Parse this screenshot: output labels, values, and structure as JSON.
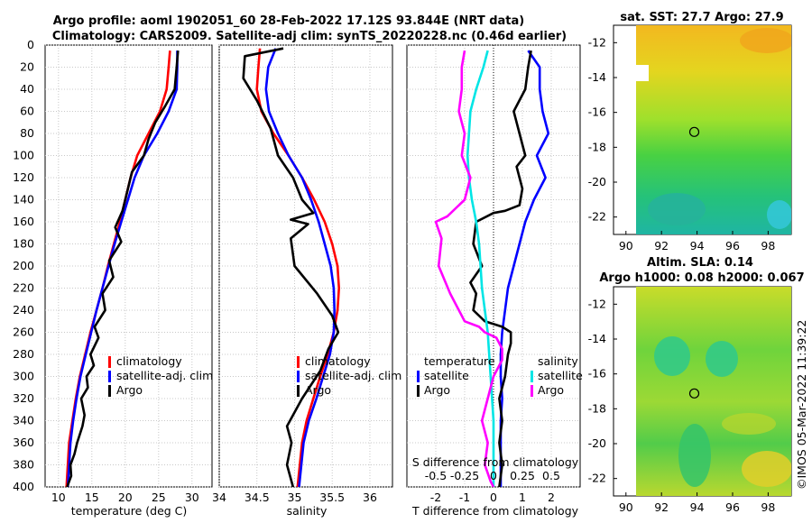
{
  "title": {
    "line1": "Argo profile: aoml 1902051_60 28-Feb-2022 17.12S 93.844E (NRT data)",
    "line2": "Climatology: CARS2009. Satellite-adj clim: synTS_20220228.nc (0.46d earlier)"
  },
  "copyright": "©IMOS 05-Mar-2022 11:39:22",
  "colors": {
    "climatology": "#ff0000",
    "satellite": "#0000ff",
    "argo": "#000000",
    "s_satellite": "#00e5e5",
    "s_argo": "#ff00ff"
  },
  "chart_data": [
    {
      "type": "line",
      "id": "temperature",
      "xlabel": "temperature (deg C)",
      "ylabel": "",
      "xlim": [
        8,
        33
      ],
      "ylim": [
        0,
        400
      ],
      "y_reversed": true,
      "xticks": [
        10,
        15,
        20,
        25,
        30
      ],
      "yticks": [
        0,
        20,
        40,
        60,
        80,
        100,
        120,
        140,
        160,
        180,
        200,
        220,
        240,
        260,
        280,
        300,
        320,
        340,
        360,
        380,
        400
      ],
      "grid": true,
      "legend": [
        "climatology",
        "satellite-adj. clim",
        "Argo"
      ],
      "series": [
        {
          "name": "climatology",
          "x": [
            26.7,
            26.5,
            26.2,
            25.2,
            23.5,
            21.8,
            20.8,
            20.0,
            19.2,
            18.3,
            17.4,
            16.6,
            15.7,
            14.8,
            14.0,
            13.2,
            12.6,
            12.1,
            11.6,
            11.2
          ],
          "y": [
            5,
            20,
            40,
            60,
            80,
            100,
            120,
            140,
            160,
            180,
            200,
            220,
            240,
            260,
            280,
            300,
            320,
            340,
            360,
            400
          ]
        },
        {
          "name": "satellite-adj. clim",
          "x": [
            27.8,
            27.8,
            27.7,
            26.5,
            24.8,
            22.8,
            21.4,
            20.4,
            19.4,
            18.4,
            17.5,
            16.6,
            15.7,
            14.9,
            14.1,
            13.3,
            12.7,
            12.2,
            11.8,
            11.4
          ],
          "y": [
            5,
            20,
            40,
            60,
            80,
            100,
            120,
            140,
            160,
            180,
            200,
            220,
            240,
            260,
            280,
            300,
            320,
            340,
            360,
            400
          ]
        },
        {
          "name": "Argo",
          "x": [
            27.9,
            27.7,
            27.4,
            26.0,
            24.5,
            23.5,
            22.8,
            21.0,
            20.4,
            19.6,
            18.5,
            19.4,
            17.6,
            18.2,
            16.6,
            17.0,
            15.4,
            16.0,
            14.8,
            15.3,
            14.2,
            14.4,
            13.4,
            13.9,
            13.6,
            12.8,
            12.4,
            11.8,
            11.9,
            11.3
          ],
          "y": [
            5,
            20,
            40,
            55,
            70,
            85,
            100,
            115,
            130,
            150,
            165,
            178,
            195,
            210,
            225,
            240,
            255,
            265,
            280,
            290,
            300,
            310,
            320,
            335,
            345,
            360,
            370,
            380,
            390,
            400
          ]
        }
      ]
    },
    {
      "type": "line",
      "id": "salinity",
      "xlabel": "salinity",
      "ylabel": "",
      "xlim": [
        34,
        36.3
      ],
      "ylim": [
        0,
        400
      ],
      "y_reversed": true,
      "xticks": [
        34,
        34.5,
        35,
        35.5,
        36
      ],
      "grid": true,
      "legend": [
        "climatology",
        "satellite-adj. clim",
        "Argo"
      ],
      "series": [
        {
          "name": "climatology",
          "x": [
            34.54,
            34.52,
            34.5,
            34.56,
            34.72,
            34.92,
            35.1,
            35.26,
            35.4,
            35.5,
            35.57,
            35.59,
            35.57,
            35.52,
            35.44,
            35.34,
            35.25,
            35.16,
            35.1,
            35.04
          ],
          "y": [
            3,
            20,
            40,
            60,
            80,
            100,
            120,
            140,
            160,
            180,
            200,
            220,
            240,
            260,
            280,
            300,
            320,
            340,
            360,
            400
          ]
        },
        {
          "name": "satellite-adj. clim",
          "x": [
            34.75,
            34.65,
            34.62,
            34.66,
            34.78,
            34.92,
            35.1,
            35.22,
            35.32,
            35.4,
            35.48,
            35.52,
            35.53,
            35.52,
            35.47,
            35.38,
            35.29,
            35.19,
            35.12,
            35.06
          ],
          "y": [
            3,
            20,
            40,
            60,
            80,
            100,
            120,
            140,
            160,
            180,
            200,
            220,
            240,
            260,
            280,
            300,
            320,
            340,
            360,
            400
          ]
        },
        {
          "name": "Argo",
          "x": [
            34.85,
            34.34,
            34.32,
            34.5,
            34.68,
            34.78,
            34.98,
            35.1,
            35.25,
            34.95,
            35.18,
            34.95,
            35.0,
            35.3,
            35.5,
            35.58,
            35.45,
            35.34,
            35.1,
            34.9,
            34.96,
            34.9,
            34.98
          ],
          "y": [
            3,
            10,
            30,
            50,
            75,
            100,
            120,
            140,
            152,
            158,
            162,
            175,
            200,
            225,
            245,
            260,
            275,
            295,
            320,
            345,
            360,
            380,
            400
          ]
        }
      ]
    },
    {
      "type": "line",
      "id": "difference",
      "xlabel": "T difference from climatology",
      "x2label": "S difference from climatology",
      "ylabel": "",
      "xlim": [
        -3,
        3
      ],
      "ylim": [
        0,
        400
      ],
      "y_reversed": true,
      "xticks": [
        -2,
        -1,
        0,
        1,
        2
      ],
      "x2ticks": [
        "-0.5",
        "-0.25",
        "0",
        "0.25",
        "0.5"
      ],
      "grid": true,
      "legend_temperature": {
        "header": "temperature",
        "items": [
          "satellite",
          "Argo"
        ]
      },
      "legend_salinity": {
        "header": "salinity",
        "items": [
          "satellite",
          "Argo"
        ]
      },
      "series": [
        {
          "name": "T satellite",
          "x": [
            1.2,
            1.6,
            1.6,
            1.7,
            1.9,
            1.5,
            1.8,
            1.4,
            1.1,
            0.9,
            0.7,
            0.5,
            0.4,
            0.3,
            0.25,
            0.25,
            0.3,
            0.25,
            0.25,
            0.25
          ],
          "y": [
            5,
            20,
            40,
            60,
            80,
            100,
            120,
            140,
            160,
            180,
            200,
            220,
            240,
            260,
            280,
            300,
            320,
            340,
            360,
            400
          ]
        },
        {
          "name": "T Argo",
          "x": [
            1.3,
            1.2,
            1.1,
            0.7,
            0.9,
            1.1,
            0.8,
            1.0,
            0.9,
            0.4,
            0.0,
            -0.6,
            -0.7,
            -0.4,
            -0.8,
            -0.6,
            -0.7,
            -0.3,
            0.3,
            0.6,
            0.6,
            0.5,
            0.4,
            0.2,
            0.3,
            0.2,
            0.3,
            0.2
          ],
          "y": [
            5,
            20,
            40,
            60,
            80,
            100,
            110,
            130,
            145,
            150,
            152,
            160,
            180,
            200,
            215,
            225,
            240,
            250,
            255,
            260,
            270,
            280,
            300,
            320,
            340,
            360,
            380,
            400
          ]
        },
        {
          "name": "S satellite",
          "x": [
            -0.2,
            -0.35,
            -0.6,
            -0.8,
            -0.85,
            -0.9,
            -0.85,
            -0.75,
            -0.6,
            -0.5,
            -0.45,
            -0.4,
            -0.3,
            -0.2,
            -0.15,
            -0.1,
            -0.05,
            0.0,
            0.0,
            0.0
          ],
          "y": [
            5,
            20,
            40,
            60,
            80,
            100,
            120,
            140,
            160,
            180,
            200,
            220,
            240,
            260,
            280,
            300,
            320,
            340,
            360,
            400
          ]
        },
        {
          "name": "S Argo",
          "x": [
            -1.0,
            -1.1,
            -1.1,
            -1.2,
            -1.0,
            -1.1,
            -0.8,
            -1.0,
            -1.6,
            -2.0,
            -1.8,
            -1.9,
            -1.5,
            -1.2,
            -1.0,
            -0.5,
            -0.3,
            0.1,
            0.3,
            0.3,
            0.0,
            -0.2,
            -0.4,
            -0.2,
            -0.3,
            -0.1,
            0.0
          ],
          "y": [
            5,
            20,
            40,
            60,
            80,
            100,
            120,
            140,
            155,
            160,
            175,
            200,
            225,
            240,
            250,
            255,
            260,
            265,
            275,
            285,
            300,
            320,
            340,
            360,
            380,
            395,
            400
          ]
        }
      ]
    },
    {
      "type": "heatmap",
      "id": "sat-sst-map",
      "title": "sat. SST: 27.7 Argo: 27.9",
      "xticks": [
        90,
        92,
        94,
        96,
        98
      ],
      "yticks": [
        -12,
        -14,
        -16,
        -18,
        -20,
        -22
      ],
      "xlim": [
        89.3,
        99.3
      ],
      "ylim": [
        -23,
        -11
      ],
      "marker": {
        "lon": 93.844,
        "lat": -17.12
      }
    },
    {
      "type": "heatmap",
      "id": "altim-sla-map",
      "title1": "Altim. SLA: 0.14",
      "title2": "Argo h1000: 0.08 h2000: 0.067",
      "xticks": [
        90,
        92,
        94,
        96,
        98
      ],
      "yticks": [
        -12,
        -14,
        -16,
        -18,
        -20,
        -22
      ],
      "xlim": [
        89.3,
        99.3
      ],
      "ylim": [
        -23,
        -11
      ],
      "marker": {
        "lon": 93.844,
        "lat": -17.12
      }
    }
  ]
}
